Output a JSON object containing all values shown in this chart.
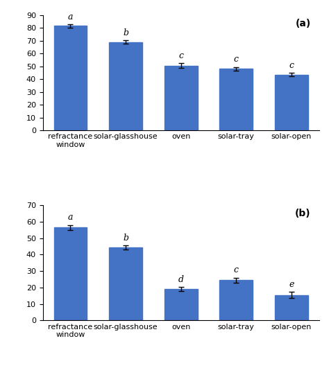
{
  "categories": [
    "refractance\nwindow",
    "solar-glasshouse",
    "oven",
    "solar-tray",
    "solar-open"
  ],
  "chart_a": {
    "values": [
      81.5,
      69.0,
      50.5,
      48.0,
      43.5
    ],
    "errors": [
      1.5,
      1.5,
      2.0,
      1.5,
      1.5
    ],
    "letters": [
      "a",
      "b",
      "c",
      "c",
      "c"
    ],
    "ylim": [
      0,
      90
    ],
    "yticks": [
      0,
      10,
      20,
      30,
      40,
      50,
      60,
      70,
      80,
      90
    ],
    "label": "(a)"
  },
  "chart_b": {
    "values": [
      56.5,
      44.5,
      19.0,
      24.5,
      15.5
    ],
    "errors": [
      1.5,
      1.2,
      1.2,
      1.5,
      1.8
    ],
    "letters": [
      "a",
      "b",
      "d",
      "c",
      "e"
    ],
    "ylim": [
      0,
      70
    ],
    "yticks": [
      0,
      10,
      20,
      30,
      40,
      50,
      60,
      70
    ],
    "label": "(b)"
  },
  "bar_color": "#4472C4",
  "bar_width": 0.6,
  "error_color": "black",
  "error_capsize": 3,
  "error_linewidth": 1.0,
  "letter_fontsize": 9,
  "tick_fontsize": 8,
  "label_fontsize": 10,
  "label_fontweight": "bold",
  "background_color": "#ffffff"
}
